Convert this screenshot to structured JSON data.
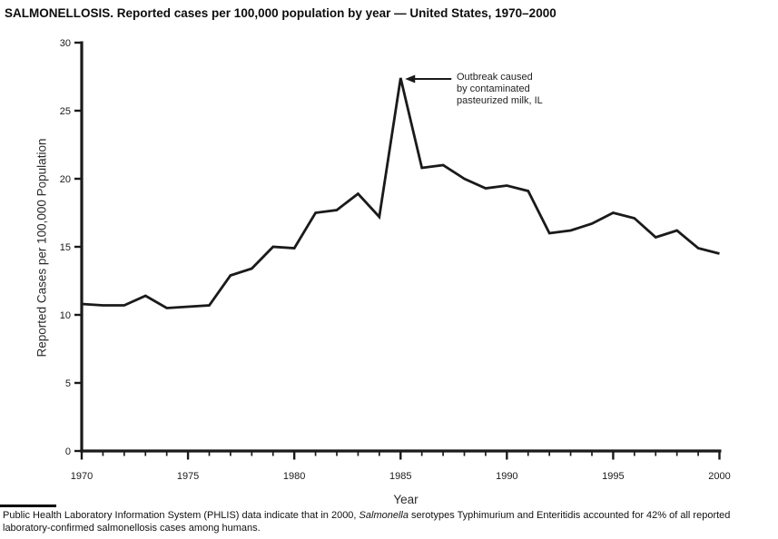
{
  "title": "SALMONELLOSIS. Reported cases per 100,000 population by year — United States, 1970–2000",
  "chart_data": {
    "type": "line",
    "title": "SALMONELLOSIS. Reported cases per 100,000 population by year — United States, 1970–2000",
    "xlabel": "Year",
    "ylabel": "Reported Cases per 100,000 Population",
    "x_range": [
      1970,
      2000
    ],
    "ylim": [
      0,
      30
    ],
    "y_ticks": [
      0,
      5,
      10,
      15,
      20,
      25,
      30
    ],
    "x_major_ticks": [
      1970,
      1975,
      1980,
      1985,
      1990,
      1995,
      2000
    ],
    "x_minor_tick_interval": 1,
    "grid": false,
    "legend_position": "none",
    "line_color": "#1a1a1a",
    "axis_color": "#1a1a1a",
    "x": [
      1970,
      1971,
      1972,
      1973,
      1974,
      1975,
      1976,
      1977,
      1978,
      1979,
      1980,
      1981,
      1982,
      1983,
      1984,
      1985,
      1986,
      1987,
      1988,
      1989,
      1990,
      1991,
      1992,
      1993,
      1994,
      1995,
      1996,
      1997,
      1998,
      1999,
      2000
    ],
    "values": [
      10.8,
      10.7,
      10.7,
      11.4,
      10.5,
      10.6,
      10.7,
      12.9,
      13.4,
      15.0,
      14.9,
      17.5,
      17.7,
      18.9,
      17.2,
      27.4,
      20.8,
      21.0,
      20.0,
      19.3,
      19.5,
      19.1,
      16.0,
      16.2,
      16.7,
      17.5,
      17.1,
      15.7,
      16.2,
      14.9,
      14.5
    ],
    "annotation": {
      "lines": [
        "Outbreak caused",
        "by contaminated",
        "pasteurized milk, IL"
      ],
      "points_to": {
        "x": 1985,
        "y": 27.4
      }
    }
  },
  "footnote": {
    "part1": "Public Health Laboratory Information System (PHLIS) data indicate that in 2000, ",
    "italic": "Salmonella",
    "part2": " serotypes Typhimurium and Enteritidis accounted for 42% of all reported laboratory-confirmed salmonellosis cases among humans."
  }
}
